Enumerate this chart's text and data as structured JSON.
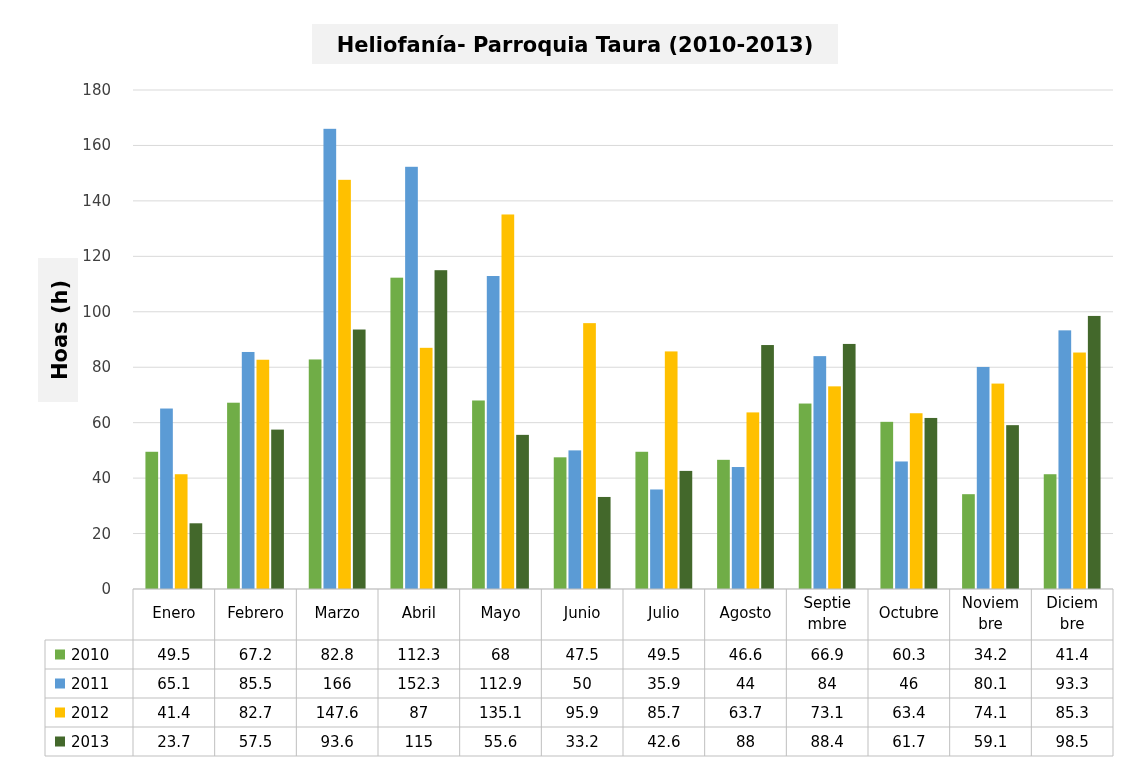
{
  "chart_data": {
    "type": "bar",
    "title": "Heliofanía- Parroquia Taura (2010-2013)",
    "ylabel": "Hoas (h)",
    "categories": [
      "Enero",
      "Febrero",
      "Marzo",
      "Abril",
      "Mayo",
      "Junio",
      "Julio",
      "Agosto",
      "Septiembre",
      "Octubre",
      "Noviembre",
      "Diciembre"
    ],
    "series": [
      {
        "name": "2010",
        "color": "#70ad47",
        "values": [
          49.5,
          67.2,
          82.8,
          112.3,
          68,
          47.5,
          49.5,
          46.6,
          66.9,
          60.3,
          34.2,
          41.4
        ]
      },
      {
        "name": "2011",
        "color": "#5b9bd5",
        "values": [
          65.1,
          85.5,
          166,
          152.3,
          112.9,
          50,
          35.9,
          44,
          84,
          46,
          80.1,
          93.3
        ]
      },
      {
        "name": "2012",
        "color": "#ffc000",
        "values": [
          41.4,
          82.7,
          147.6,
          87,
          135.1,
          95.9,
          85.7,
          63.7,
          73.1,
          63.4,
          74.1,
          85.3
        ]
      },
      {
        "name": "2013",
        "color": "#43682b",
        "values": [
          23.7,
          57.5,
          93.6,
          115,
          55.6,
          33.2,
          42.6,
          88,
          88.4,
          61.7,
          59.1,
          98.5
        ]
      }
    ],
    "ylim": [
      0,
      180
    ],
    "yticks": [
      0,
      20,
      40,
      60,
      80,
      100,
      120,
      140,
      160,
      180
    ],
    "grid": "y",
    "legend": "bottom",
    "data_labels": true
  }
}
